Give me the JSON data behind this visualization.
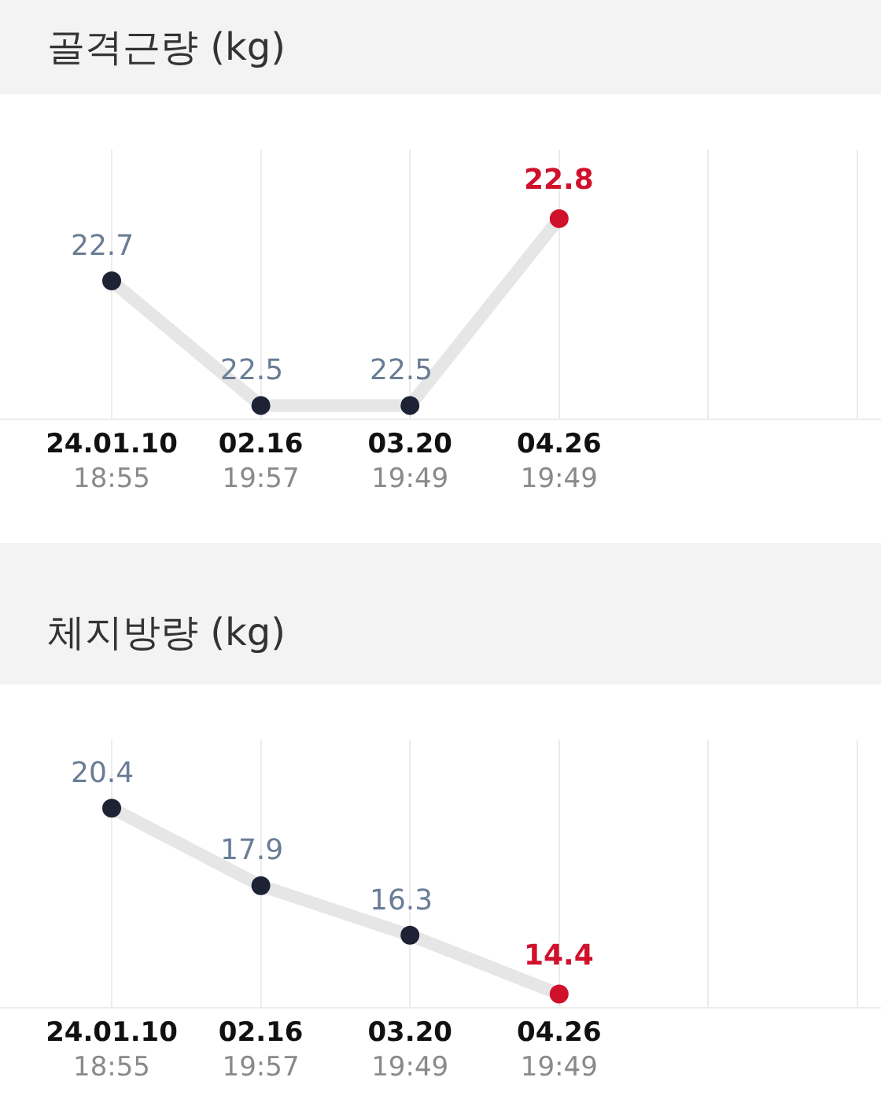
{
  "chart_data": [
    {
      "type": "line",
      "title": "골격근량 (kg)",
      "categories": [
        "24.01.10\n18:55",
        "02.16\n19:57",
        "03.20\n19:49",
        "04.26\n19:49",
        null,
        null
      ],
      "series": [
        {
          "color": "#e6e6e6",
          "values": [
            22.7,
            22.5,
            22.5,
            22.8,
            null,
            null
          ],
          "colors": [
            "#1e2235",
            "#1e2235",
            "#1e2235",
            "#d0112b",
            null,
            null
          ]
        }
      ],
      "data_labels": true,
      "marker": "circle",
      "line_style": "solid",
      "grid": "x",
      "tick_labels": "x"
    },
    {
      "type": "line",
      "title": "체지방량 (kg)",
      "categories": [
        "24.01.10\n18:55",
        "02.16\n19:57",
        "03.20\n19:49",
        "04.26\n19:49",
        null,
        null
      ],
      "series": [
        {
          "color": "#e6e6e6",
          "values": [
            20.4,
            17.9,
            16.3,
            14.4,
            null,
            null
          ],
          "colors": [
            "#1e2235",
            "#1e2235",
            "#1e2235",
            "#d0112b",
            null,
            null
          ]
        }
      ],
      "data_labels": true,
      "marker": "circle",
      "line_style": "solid",
      "grid": "x",
      "tick_labels": "x"
    }
  ]
}
